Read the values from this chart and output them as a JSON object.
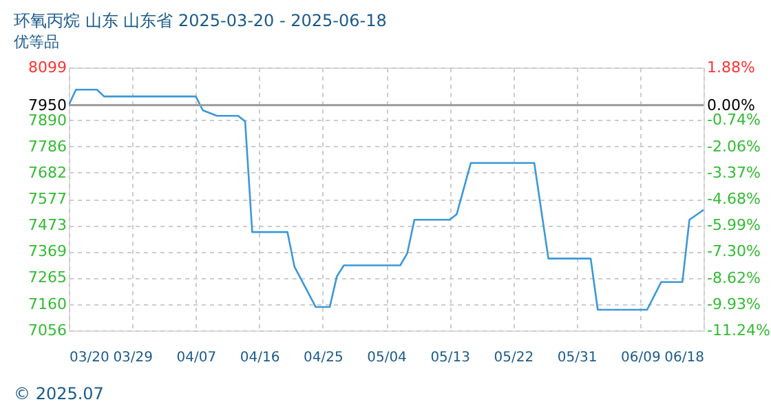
{
  "chart_data": {
    "type": "line",
    "title": "环氧丙烷 山东 山东省 2025-03-20 - 2025-06-18",
    "subtitle": "优等品",
    "x": [
      "2025-03-20",
      "2025-03-21",
      "2025-03-24",
      "2025-03-25",
      "2025-04-07",
      "2025-04-08",
      "2025-04-10",
      "2025-04-13",
      "2025-04-14",
      "2025-04-15",
      "2025-04-20",
      "2025-04-21",
      "2025-04-24",
      "2025-04-26",
      "2025-04-27",
      "2025-04-28",
      "2025-05-06",
      "2025-05-07",
      "2025-05-08",
      "2025-05-13",
      "2025-05-14",
      "2025-05-16",
      "2025-05-25",
      "2025-05-27",
      "2025-06-02",
      "2025-06-03",
      "2025-06-10",
      "2025-06-12",
      "2025-06-15",
      "2025-06-16",
      "2025-06-18"
    ],
    "series": [
      {
        "color": "#3a98d8",
        "values": [
          7950,
          8011,
          8011,
          7984,
          7984,
          7929,
          7907,
          7907,
          7885,
          7446,
          7446,
          7308,
          7149,
          7149,
          7270,
          7314,
          7314,
          7363,
          7495,
          7495,
          7517,
          7720,
          7720,
          7341,
          7341,
          7138,
          7138,
          7248,
          7248,
          7495,
          7534
        ]
      }
    ],
    "xlim": [
      "2025-03-20",
      "2025-06-18"
    ],
    "xticks": [
      {
        "value": "2025-03-20",
        "label": "03/20"
      },
      {
        "value": "2025-03-29",
        "label": "03/29"
      },
      {
        "value": "2025-04-07",
        "label": "04/07"
      },
      {
        "value": "2025-04-16",
        "label": "04/16"
      },
      {
        "value": "2025-04-25",
        "label": "04/25"
      },
      {
        "value": "2025-05-04",
        "label": "05/04"
      },
      {
        "value": "2025-05-13",
        "label": "05/13"
      },
      {
        "value": "2025-05-22",
        "label": "05/22"
      },
      {
        "value": "2025-05-31",
        "label": "05/31"
      },
      {
        "value": "2025-06-09",
        "label": "06/09"
      },
      {
        "value": "2025-06-18",
        "label": "06/18"
      }
    ],
    "ylim": [
      7056,
      8099
    ],
    "yticks": [
      8099,
      7950,
      7890,
      7786,
      7682,
      7577,
      7473,
      7369,
      7265,
      7160,
      7056
    ],
    "y2lim": [
      -11.24,
      1.88
    ],
    "y2ticks": [
      {
        "value": 1.88,
        "label": "1.88%"
      },
      {
        "value": 0,
        "label": "0.00%"
      },
      {
        "value": -0.74,
        "label": "-0.74%"
      },
      {
        "value": -2.06,
        "label": "-2.06%"
      },
      {
        "value": -3.37,
        "label": "-3.37%"
      },
      {
        "value": -4.68,
        "label": "-4.68%"
      },
      {
        "value": -5.99,
        "label": "-5.99%"
      },
      {
        "value": -7.3,
        "label": "-7.30%"
      },
      {
        "value": -8.62,
        "label": "-8.62%"
      },
      {
        "value": -9.93,
        "label": "-9.93%"
      },
      {
        "value": -11.24,
        "label": "-11.24%"
      }
    ],
    "ref_lines": [
      {
        "axis": "y2",
        "value": 0,
        "color": "#999999"
      }
    ],
    "annotations": [
      "© 2025.07"
    ],
    "grid": true,
    "marker": "none",
    "line_style": "solid"
  }
}
